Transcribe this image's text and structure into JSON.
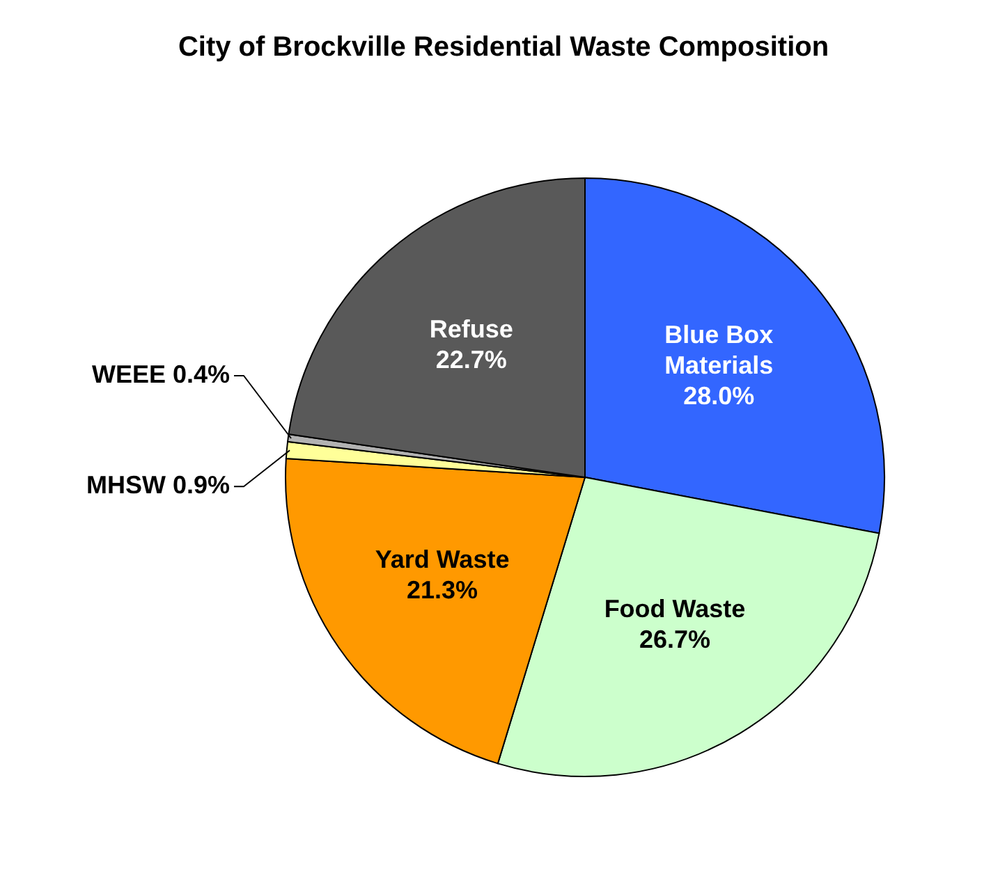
{
  "chart_data": {
    "type": "pie",
    "title": "City of Brockville Residential Waste Composition",
    "categories": [
      "Blue Box Materials",
      "Food Waste",
      "Yard Waste",
      "MHSW",
      "WEEE",
      "Refuse"
    ],
    "values": [
      28.0,
      26.7,
      21.3,
      0.9,
      0.4,
      22.7
    ],
    "value_labels": [
      "28.0%",
      "26.7%",
      "21.3%",
      "0.9%",
      "0.4%",
      "22.7%"
    ],
    "colors": [
      "#3366ff",
      "#ccffcc",
      "#ff9900",
      "#ffff99",
      "#b2b2b2",
      "#595959"
    ]
  }
}
